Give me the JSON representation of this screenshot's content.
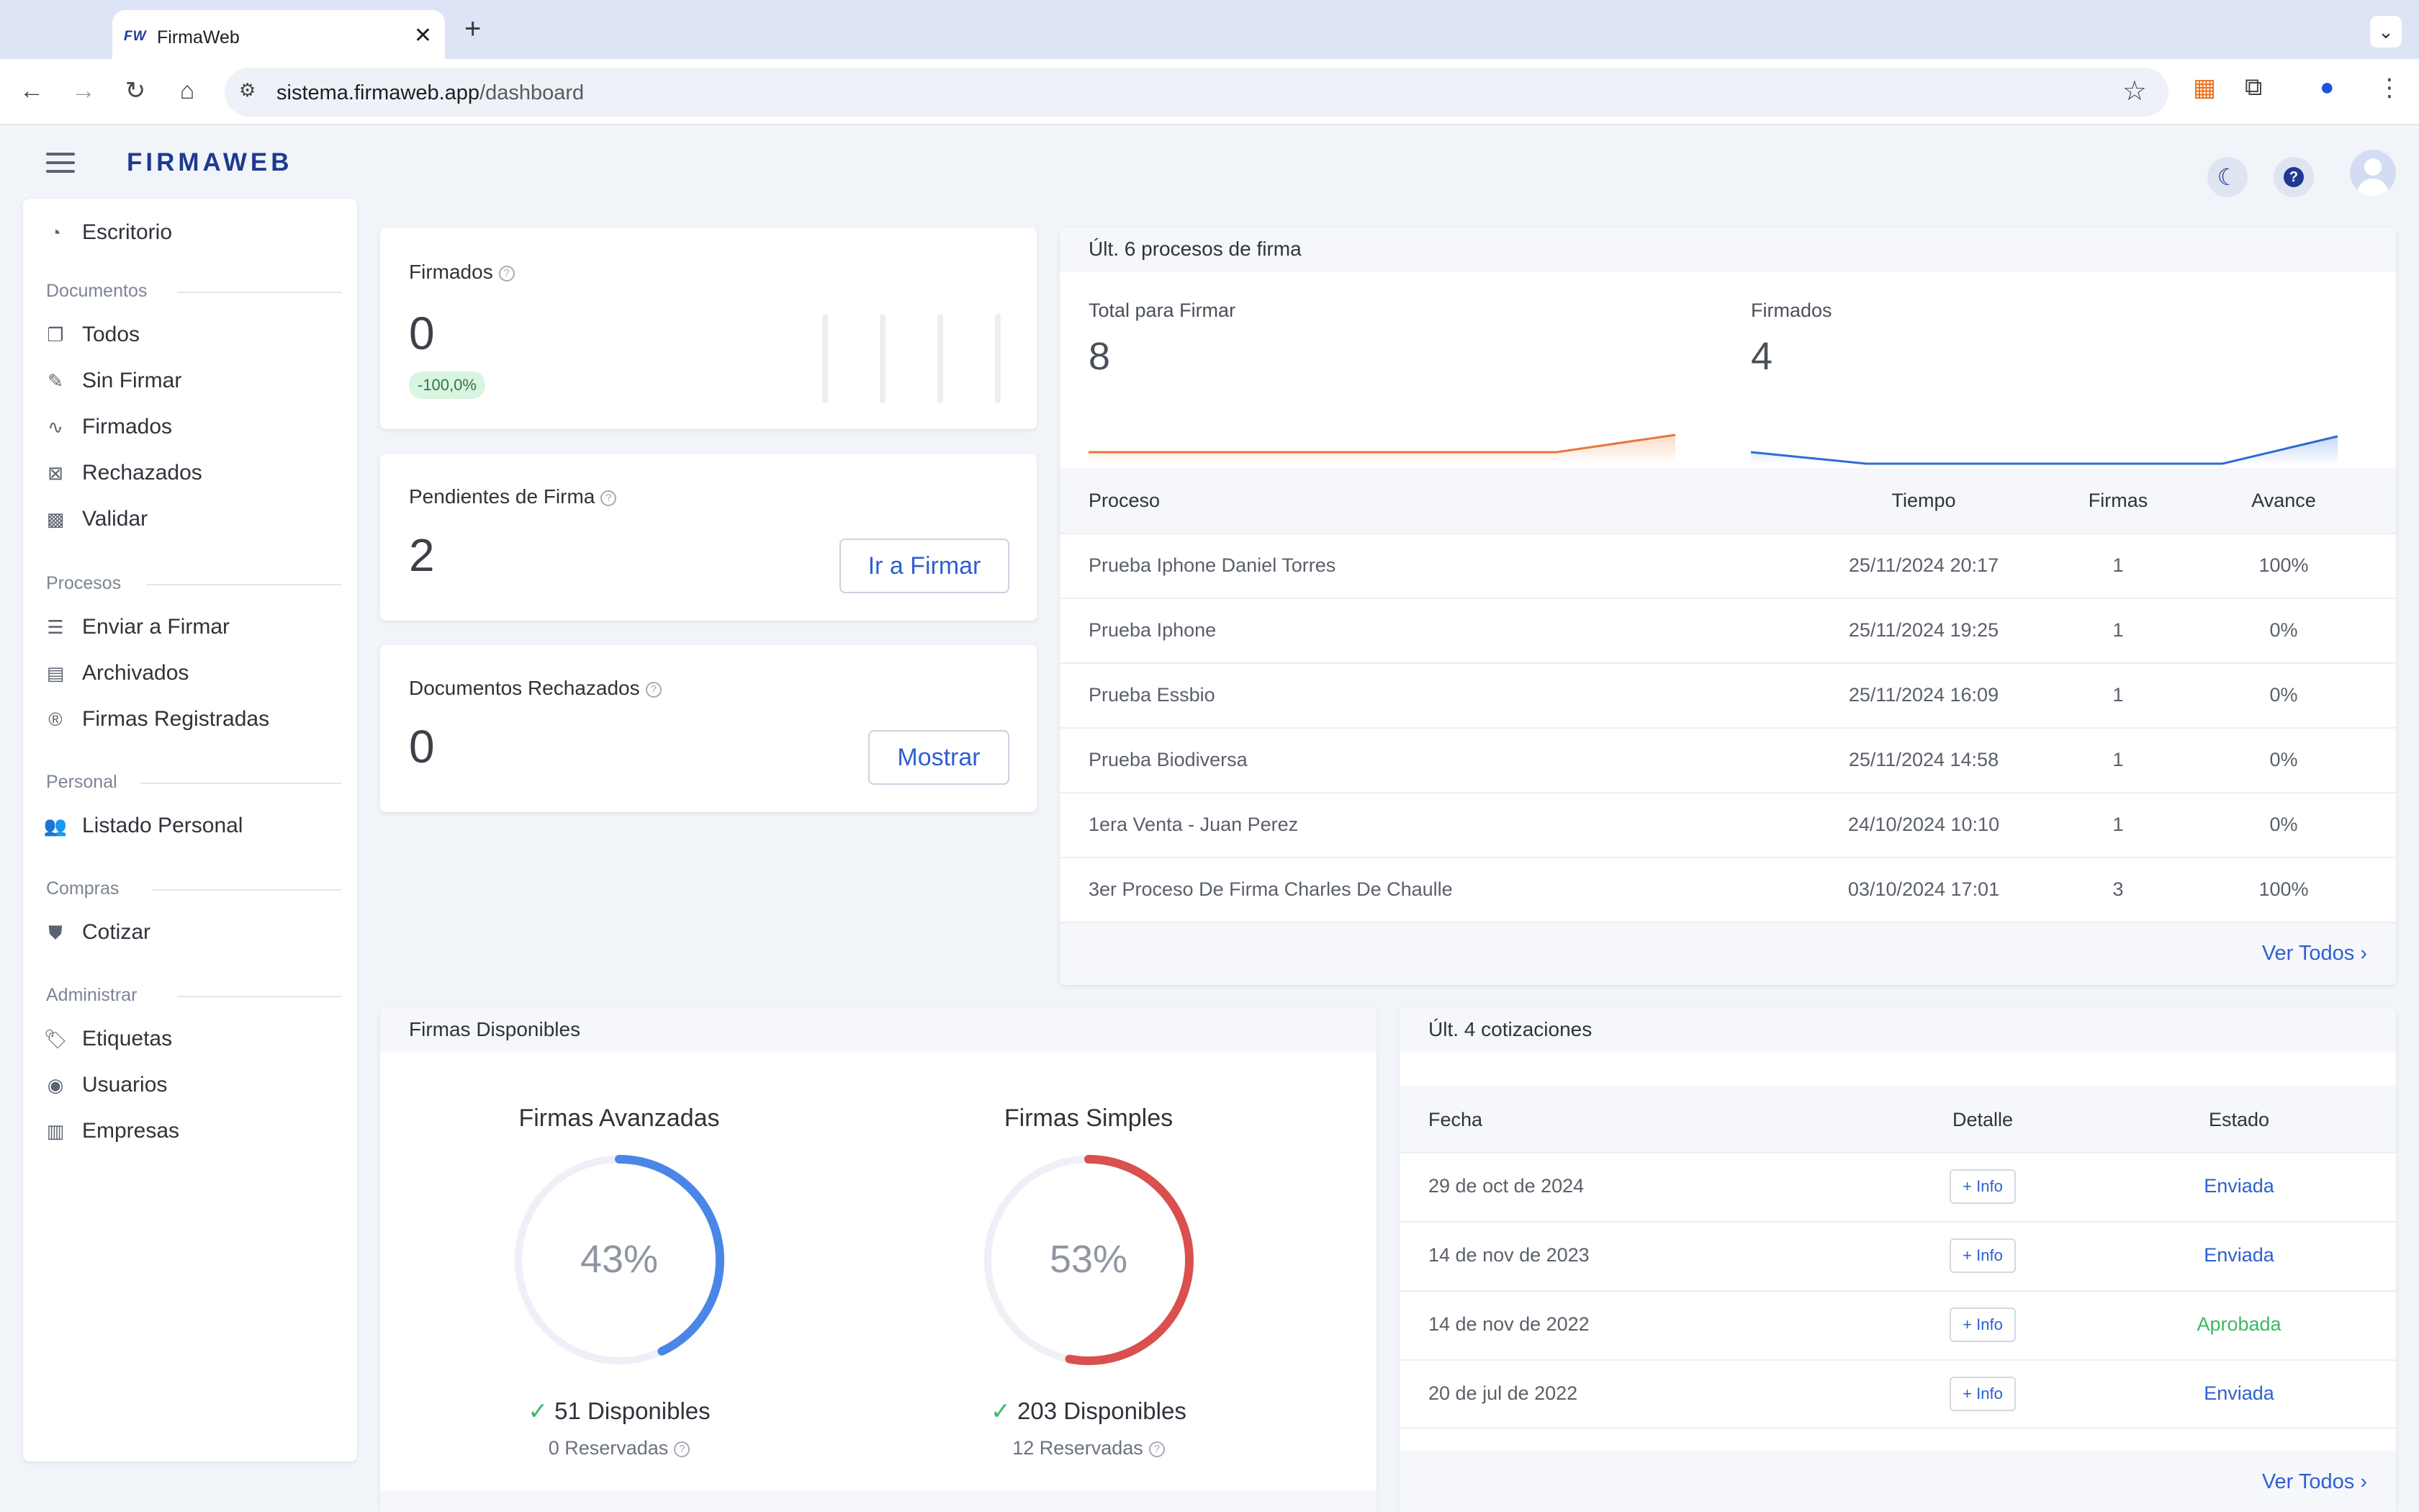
{
  "browser": {
    "tab_favicon": "FW",
    "tab_title": "FirmaWeb",
    "url_host": "sistema.firmaweb.app",
    "url_path": "/dashboard"
  },
  "app": {
    "logo": "FIRMAWEB"
  },
  "sidebar": {
    "escritorio": "Escritorio",
    "sec_documentos": "Documentos",
    "todos": "Todos",
    "sin_firmar": "Sin Firmar",
    "firmados": "Firmados",
    "rechazados": "Rechazados",
    "validar": "Validar",
    "sec_procesos": "Procesos",
    "enviar": "Enviar a Firmar",
    "archivados": "Archivados",
    "firmas_registradas": "Firmas Registradas",
    "sec_personal": "Personal",
    "listado_personal": "Listado Personal",
    "sec_compras": "Compras",
    "cotizar": "Cotizar",
    "sec_administrar": "Administrar",
    "etiquetas": "Etiquetas",
    "usuarios": "Usuarios",
    "empresas": "Empresas"
  },
  "stats": {
    "firmados": {
      "title": "Firmados",
      "value": "0",
      "badge": "-100,0%"
    },
    "pendientes": {
      "title": "Pendientes de Firma",
      "value": "2",
      "button": "Ir a Firmar"
    },
    "rechazados": {
      "title": "Documentos Rechazados",
      "value": "0",
      "button": "Mostrar"
    }
  },
  "procesos": {
    "title": "Últ. 6 procesos de firma",
    "total_label": "Total para Firmar",
    "total_value": "8",
    "firmados_label": "Firmados",
    "firmados_value": "4",
    "columns": [
      "Proceso",
      "Tiempo",
      "Firmas",
      "Avance"
    ],
    "rows": [
      {
        "proceso": "Prueba Iphone Daniel Torres",
        "tiempo": "25/11/2024 20:17",
        "firmas": "1",
        "avance": "100%"
      },
      {
        "proceso": "Prueba Iphone",
        "tiempo": "25/11/2024 19:25",
        "firmas": "1",
        "avance": "0%"
      },
      {
        "proceso": "Prueba Essbio",
        "tiempo": "25/11/2024 16:09",
        "firmas": "1",
        "avance": "0%"
      },
      {
        "proceso": "Prueba Biodiversa",
        "tiempo": "25/11/2024 14:58",
        "firmas": "1",
        "avance": "0%"
      },
      {
        "proceso": "1era Venta - Juan Perez",
        "tiempo": "24/10/2024 10:10",
        "firmas": "1",
        "avance": "0%"
      },
      {
        "proceso": "3er Proceso De Firma Charles De Chaulle",
        "tiempo": "03/10/2024 17:01",
        "firmas": "3",
        "avance": "100%"
      }
    ],
    "ver_todos": "Ver Todos"
  },
  "firmas": {
    "title": "Firmas Disponibles",
    "avanzadas": {
      "title": "Firmas Avanzadas",
      "percent": 43,
      "percent_label": "43%",
      "disponibles": "51 Disponibles",
      "reservadas": "0 Reservadas",
      "color": "#4a86e8"
    },
    "simples": {
      "title": "Firmas Simples",
      "percent": 53,
      "percent_label": "53%",
      "disponibles": "203 Disponibles",
      "reservadas": "12 Reservadas",
      "color": "#d9504f"
    }
  },
  "cotizaciones": {
    "title": "Últ. 4 cotizaciones",
    "columns": [
      "Fecha",
      "Detalle",
      "Estado"
    ],
    "info_label": "+ Info",
    "rows": [
      {
        "fecha": "29 de oct de 2024",
        "estado": "Enviada",
        "estado_color": "#2f5fcf"
      },
      {
        "fecha": "14 de nov de 2023",
        "estado": "Enviada",
        "estado_color": "#2f5fcf"
      },
      {
        "fecha": "14 de nov de 2022",
        "estado": "Aprobada",
        "estado_color": "#3bb862"
      },
      {
        "fecha": "20 de jul de 2022",
        "estado": "Enviada",
        "estado_color": "#2f5fcf"
      }
    ],
    "ver_todos": "Ver Todos"
  }
}
